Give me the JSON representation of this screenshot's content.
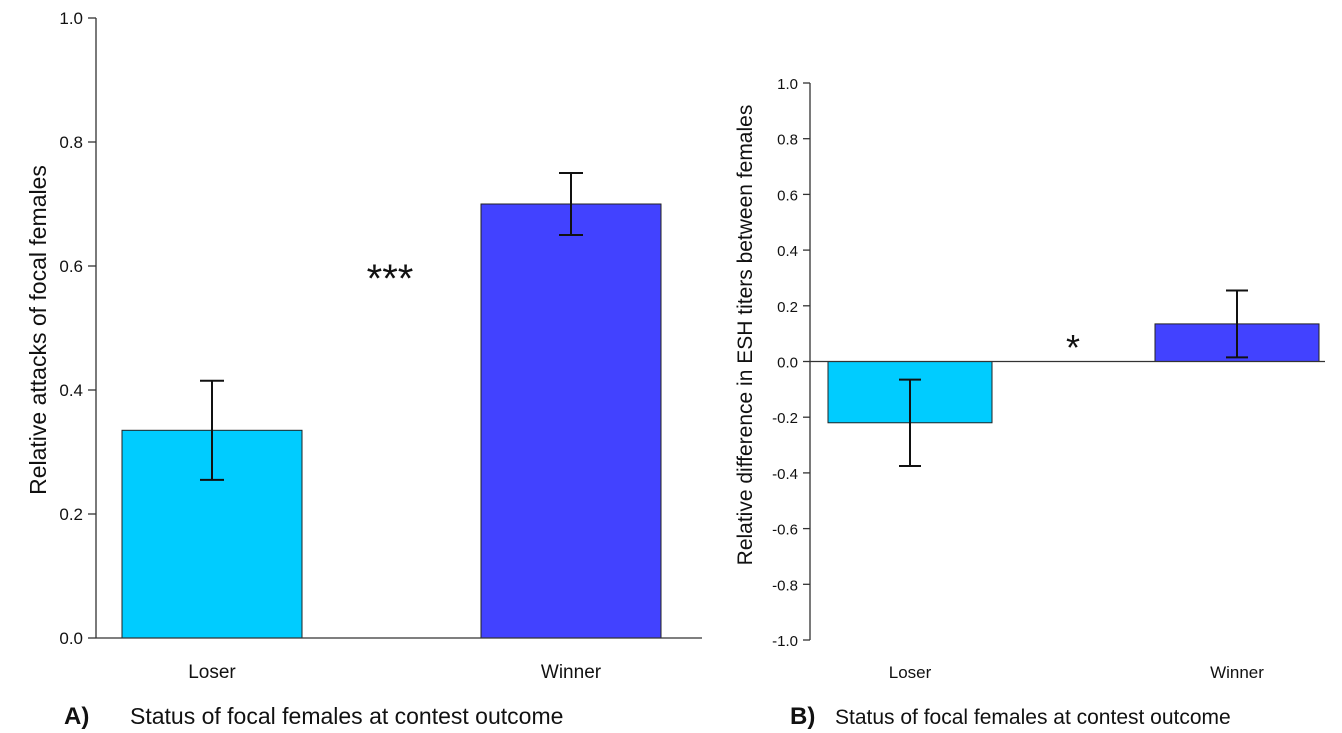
{
  "chart_data": [
    {
      "panel_label": "A)",
      "type": "bar",
      "categories": [
        "Loser",
        "Winner"
      ],
      "values": [
        0.335,
        0.7
      ],
      "errors": [
        0.08,
        0.05
      ],
      "colors": [
        "#00CCFF",
        "#4242FF"
      ],
      "ylim": [
        0.0,
        1.0
      ],
      "yticks": [
        "0.0",
        "0.2",
        "0.4",
        "0.6",
        "0.8",
        "1.0"
      ],
      "xlabel": "Status of focal females at contest outcome",
      "ylabel": "Relative attacks of focal females",
      "significance": "***"
    },
    {
      "panel_label": "B)",
      "type": "bar",
      "categories": [
        "Loser",
        "Winner"
      ],
      "values": [
        -0.22,
        0.135
      ],
      "errors": [
        0.155,
        0.12
      ],
      "colors": [
        "#00CCFF",
        "#4242FF"
      ],
      "ylim": [
        -1.0,
        1.0
      ],
      "yticks": [
        "1.0",
        "0.8",
        "0.6",
        "0.4",
        "0.2",
        "0.0",
        "-0.2",
        "-0.4",
        "-0.6",
        "-0.8",
        "-1.0"
      ],
      "xlabel": "Status of focal females at contest outcome",
      "ylabel": "Relative difference in ESH titers between females",
      "significance": "*"
    }
  ]
}
